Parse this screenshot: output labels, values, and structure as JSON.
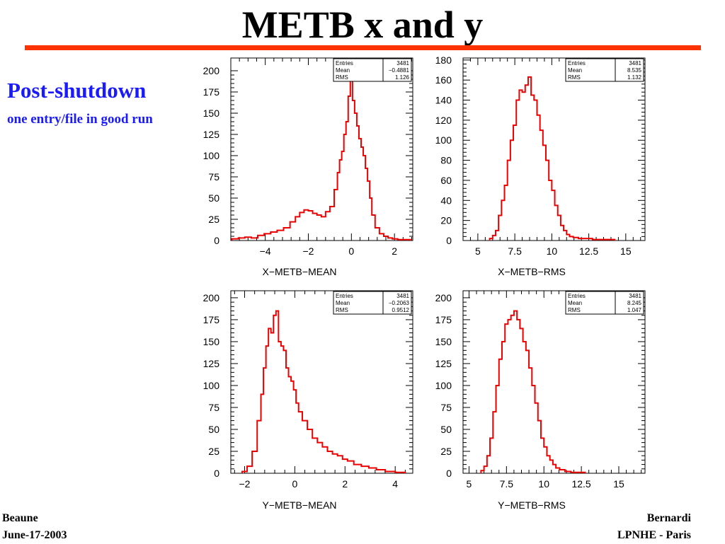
{
  "slide": {
    "title": "METB x and y",
    "subtitle": "Post-shutdown",
    "caption": "one entry/file in good run",
    "footer_left": [
      "Beaune",
      "June-17-2003"
    ],
    "footer_right": [
      "Bernardi",
      "LPNHE - Paris"
    ]
  },
  "colors": {
    "rule": "#ff3300",
    "subtitle": "#1a1aff",
    "histogram": "#ee0000",
    "axis": "#000000"
  },
  "chart_data": [
    {
      "type": "histogram",
      "xlabel": "X−METB−MEAN",
      "xlim": [
        -5.6,
        2.85
      ],
      "ylim": [
        0,
        215
      ],
      "xticks": [
        -4,
        -2,
        0,
        2
      ],
      "xticklabels": [
        "−4",
        "−2",
        "0",
        "2"
      ],
      "yticks": [
        0,
        25,
        50,
        75,
        100,
        125,
        150,
        175,
        200
      ],
      "stats": [
        [
          "Entries",
          "3481"
        ],
        [
          "Mean",
          "−0.4881"
        ],
        [
          "RMS",
          "1.126"
        ]
      ],
      "x": [
        -5.4,
        -5.1,
        -4.8,
        -4.5,
        -4.2,
        -3.9,
        -3.6,
        -3.3,
        -3.0,
        -2.7,
        -2.5,
        -2.3,
        -2.1,
        -1.9,
        -1.7,
        -1.5,
        -1.3,
        -1.1,
        -0.9,
        -0.7,
        -0.6,
        -0.5,
        -0.4,
        -0.3,
        -0.2,
        -0.1,
        0.0,
        0.1,
        0.2,
        0.3,
        0.4,
        0.5,
        0.6,
        0.7,
        0.8,
        0.9,
        1.0,
        1.2,
        1.4,
        1.6,
        1.8,
        2.0,
        2.3,
        2.6
      ],
      "y": [
        2,
        3,
        4,
        3,
        6,
        8,
        10,
        12,
        15,
        22,
        28,
        33,
        36,
        35,
        32,
        30,
        28,
        34,
        40,
        60,
        80,
        95,
        105,
        125,
        140,
        170,
        205,
        165,
        150,
        135,
        120,
        110,
        100,
        85,
        70,
        50,
        30,
        15,
        8,
        5,
        3,
        2,
        1,
        1
      ]
    },
    {
      "type": "histogram",
      "xlabel": "X−METB−RMS",
      "xlim": [
        4.0,
        16.3
      ],
      "ylim": [
        0,
        182
      ],
      "xticks": [
        5,
        7.5,
        10,
        12.5,
        15
      ],
      "xticklabels": [
        "5",
        "7.5",
        "10",
        "12.5",
        "15"
      ],
      "yticks": [
        0,
        20,
        40,
        60,
        80,
        100,
        120,
        140,
        160,
        180
      ],
      "stats": [
        [
          "Entries",
          "3481"
        ],
        [
          "Mean",
          "8.535"
        ],
        [
          "RMS",
          "1.132"
        ]
      ],
      "x": [
        5.9,
        6.1,
        6.3,
        6.5,
        6.7,
        6.9,
        7.1,
        7.3,
        7.5,
        7.7,
        7.9,
        8.1,
        8.3,
        8.5,
        8.7,
        8.9,
        9.1,
        9.3,
        9.5,
        9.7,
        9.9,
        10.1,
        10.3,
        10.5,
        10.7,
        10.9,
        11.1,
        11.3,
        11.6,
        12.0,
        12.5,
        13.0,
        13.5,
        14.0
      ],
      "y": [
        2,
        5,
        10,
        25,
        40,
        55,
        80,
        100,
        115,
        140,
        150,
        148,
        155,
        163,
        145,
        140,
        125,
        110,
        95,
        80,
        60,
        50,
        35,
        25,
        15,
        10,
        6,
        4,
        3,
        2,
        2,
        1,
        1,
        1
      ]
    },
    {
      "type": "histogram",
      "xlabel": "Y−METB−MEAN",
      "xlim": [
        -2.55,
        4.7
      ],
      "ylim": [
        0,
        208
      ],
      "xticks": [
        -2,
        0,
        2,
        4
      ],
      "xticklabels": [
        "−2",
        "0",
        "2",
        "4"
      ],
      "yticks": [
        0,
        25,
        50,
        75,
        100,
        125,
        150,
        175,
        200
      ],
      "stats": [
        [
          "Entries",
          "3481"
        ],
        [
          "Mean",
          "−0.2063"
        ],
        [
          "RMS",
          "0.9512"
        ]
      ],
      "x": [
        -2.0,
        -1.8,
        -1.6,
        -1.4,
        -1.3,
        -1.2,
        -1.1,
        -1.0,
        -0.9,
        -0.8,
        -0.7,
        -0.6,
        -0.5,
        -0.4,
        -0.3,
        -0.2,
        -0.1,
        0.0,
        0.1,
        0.2,
        0.4,
        0.6,
        0.8,
        1.0,
        1.2,
        1.4,
        1.6,
        1.8,
        2.0,
        2.2,
        2.5,
        2.8,
        3.1,
        3.4,
        3.8,
        4.2
      ],
      "y": [
        2,
        8,
        25,
        60,
        90,
        120,
        145,
        165,
        160,
        180,
        185,
        150,
        145,
        140,
        120,
        110,
        105,
        95,
        80,
        70,
        60,
        50,
        40,
        35,
        30,
        25,
        22,
        20,
        16,
        14,
        10,
        8,
        6,
        4,
        2,
        1
      ]
    },
    {
      "type": "histogram",
      "xlabel": "Y−METB−RMS",
      "xlim": [
        4.6,
        16.75
      ],
      "ylim": [
        0,
        208
      ],
      "xticks": [
        5,
        7.5,
        10,
        12.5,
        15
      ],
      "xticklabels": [
        "5",
        "7.5",
        "10",
        "12.5",
        "15"
      ],
      "yticks": [
        0,
        25,
        50,
        75,
        100,
        125,
        150,
        175,
        200
      ],
      "stats": [
        [
          "Entries",
          "3481"
        ],
        [
          "Mean",
          "8.245"
        ],
        [
          "RMS",
          "1.047"
        ]
      ],
      "x": [
        5.9,
        6.1,
        6.3,
        6.5,
        6.7,
        6.9,
        7.1,
        7.3,
        7.5,
        7.7,
        7.9,
        8.1,
        8.3,
        8.5,
        8.7,
        8.9,
        9.1,
        9.3,
        9.5,
        9.7,
        9.9,
        10.1,
        10.3,
        10.5,
        10.7,
        10.9,
        11.2,
        11.6,
        12.0,
        12.5
      ],
      "y": [
        3,
        8,
        20,
        40,
        70,
        100,
        130,
        150,
        170,
        175,
        180,
        185,
        175,
        165,
        150,
        140,
        120,
        100,
        80,
        60,
        40,
        30,
        20,
        15,
        10,
        6,
        4,
        2,
        1,
        1
      ]
    }
  ]
}
